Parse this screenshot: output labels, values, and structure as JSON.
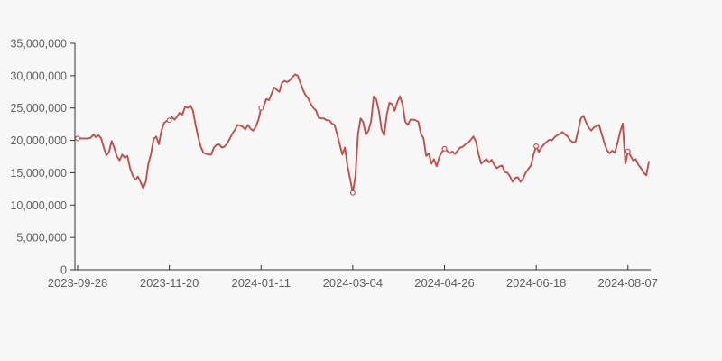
{
  "page": {
    "background_color": "#f7f7f7"
  },
  "chart_data": {
    "type": "line",
    "xlabel": "",
    "ylabel": "",
    "grid": false,
    "legend_visible": false,
    "axis_color": "#333333",
    "label_color": "#5f5f5f",
    "ylim": [
      0,
      35000000
    ],
    "y_tick_values": [
      0,
      5000000,
      10000000,
      15000000,
      20000000,
      25000000,
      30000000,
      35000000
    ],
    "y_tick_labels": [
      "0",
      "5,000,000",
      "10,000,000",
      "15,000,000",
      "20,000,000",
      "25,000,000",
      "30,000,000",
      "35,000,000"
    ],
    "x_tick_labels": [
      "2023-09-28",
      "2023-11-20",
      "2024-01-11",
      "2024-03-04",
      "2024-04-26",
      "2024-06-18",
      "2024-08-07"
    ],
    "x_tick_indices": [
      0,
      35,
      70,
      105,
      140,
      175,
      210
    ],
    "series": [
      {
        "color": "#c0504d",
        "marker": "hollow-circle",
        "marker_fill": "#ffffff",
        "marker_indices": [
          0,
          35,
          70,
          105,
          140,
          175,
          210
        ],
        "values": [
          20300000,
          20300000,
          20300000,
          20300000,
          20300000,
          20400000,
          20900000,
          20500000,
          20800000,
          20300000,
          18900000,
          17700000,
          18200000,
          19900000,
          18800000,
          17500000,
          16900000,
          17800000,
          17300000,
          17600000,
          15700000,
          14600000,
          13900000,
          14400000,
          13600000,
          12600000,
          13600000,
          16400000,
          17900000,
          20200000,
          20600000,
          19400000,
          21500000,
          22700000,
          23000000,
          23100000,
          23600000,
          23200000,
          23700000,
          24300000,
          24000000,
          25200000,
          25000000,
          25400000,
          24600000,
          22400000,
          20500000,
          19000000,
          18100000,
          17900000,
          17800000,
          17800000,
          18900000,
          19300000,
          19400000,
          18900000,
          19000000,
          19500000,
          20200000,
          21000000,
          21600000,
          22400000,
          22300000,
          22100000,
          21700000,
          22400000,
          21800000,
          21500000,
          22100000,
          23200000,
          25000000,
          25300000,
          26400000,
          26200000,
          27200000,
          28200000,
          27800000,
          27500000,
          28900000,
          29200000,
          29000000,
          29300000,
          29800000,
          30200000,
          30000000,
          28900000,
          27800000,
          27000000,
          26500000,
          25600000,
          25000000,
          24600000,
          23500000,
          23400000,
          23400000,
          23100000,
          23100000,
          22600000,
          22400000,
          21000000,
          19400000,
          17800000,
          18900000,
          16000000,
          14000000,
          11900000,
          14500000,
          21000000,
          23400000,
          22800000,
          20900000,
          21500000,
          23000000,
          26800000,
          26300000,
          24500000,
          21700000,
          20800000,
          24000000,
          25800000,
          25600000,
          24600000,
          25900000,
          26800000,
          25500000,
          22900000,
          22400000,
          23200000,
          23200000,
          23100000,
          22900000,
          21000000,
          20300000,
          17600000,
          18000000,
          16400000,
          17100000,
          16000000,
          17400000,
          18200000,
          18700000,
          18400000,
          18000000,
          18300000,
          17900000,
          18400000,
          18900000,
          19000000,
          19400000,
          19600000,
          20100000,
          20600000,
          19800000,
          17800000,
          16400000,
          16800000,
          17100000,
          16600000,
          17000000,
          16200000,
          15700000,
          16000000,
          16100000,
          15100000,
          15000000,
          14400000,
          13600000,
          14200000,
          14300000,
          13600000,
          14100000,
          15000000,
          15600000,
          16100000,
          17800000,
          19100000,
          18200000,
          18900000,
          19400000,
          19800000,
          20100000,
          20000000,
          20500000,
          20800000,
          21000000,
          21300000,
          20900000,
          20600000,
          20000000,
          19700000,
          19800000,
          21500000,
          23400000,
          23800000,
          22800000,
          22000000,
          21500000,
          22000000,
          22200000,
          22400000,
          21000000,
          19600000,
          18500000,
          18000000,
          18400000,
          18100000,
          19600000,
          21300000,
          22600000,
          16400000,
          18300000,
          17600000,
          16900000,
          17100000,
          16200000,
          15700000,
          15000000,
          14600000,
          16700000
        ]
      }
    ]
  }
}
